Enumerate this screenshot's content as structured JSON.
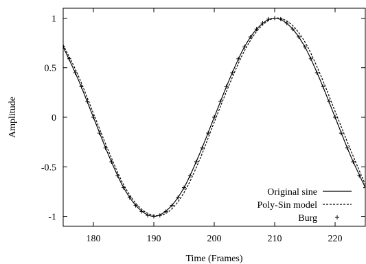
{
  "chart_data": {
    "type": "line",
    "title": "",
    "xlabel": "Time (Frames)",
    "ylabel": "Amplitude",
    "xlim": [
      175,
      225
    ],
    "ylim": [
      -1.1,
      1.1
    ],
    "x_ticks": [
      180,
      190,
      200,
      210,
      220
    ],
    "x_tick_labels": [
      "180",
      "190",
      "200",
      "210",
      "220"
    ],
    "y_ticks": [
      1,
      0.5,
      0,
      -0.5,
      -1
    ],
    "y_tick_labels": [
      "1",
      "0.5",
      "0",
      "-0.5",
      "-1"
    ],
    "grid": false,
    "legend_position": "bottom-right",
    "series": [
      {
        "name": "Original sine",
        "style": "solid",
        "color": "#000000",
        "x": [
          175,
          177.5,
          180,
          182.5,
          185,
          187.5,
          190,
          192.5,
          195,
          197.5,
          200,
          202.5,
          205,
          207.5,
          210,
          212.5,
          215,
          217.5,
          220,
          222.5,
          225
        ],
        "y": [
          0.71,
          0.38,
          0.0,
          -0.38,
          -0.71,
          -0.92,
          -1.0,
          -0.92,
          -0.71,
          -0.38,
          0.0,
          0.38,
          0.71,
          0.92,
          1.0,
          0.92,
          0.71,
          0.38,
          0.0,
          -0.38,
          -0.71
        ]
      },
      {
        "name": "Poly-Sin model",
        "style": "dashed",
        "color": "#000000",
        "x": [
          175,
          177.5,
          180,
          182.5,
          185,
          187.5,
          190,
          192.5,
          195,
          197.5,
          200,
          202.5,
          205,
          207.5,
          210,
          212.5,
          215,
          217.5,
          220,
          222.5,
          225
        ],
        "y": [
          0.73,
          0.42,
          0.04,
          -0.34,
          -0.68,
          -0.9,
          -0.99,
          -0.95,
          -0.76,
          -0.44,
          -0.05,
          0.33,
          0.67,
          0.9,
          1.0,
          0.95,
          0.76,
          0.44,
          0.06,
          -0.32,
          -0.68
        ]
      },
      {
        "name": "Burg",
        "style": "markers",
        "marker": "+",
        "color": "#000000",
        "x": [
          175,
          176,
          177,
          178,
          179,
          180,
          181,
          182,
          183,
          184,
          185,
          186,
          187,
          188,
          189,
          190,
          191,
          192,
          193,
          194,
          195,
          196,
          197,
          198,
          199,
          200,
          201,
          202,
          203,
          204,
          205,
          206,
          207,
          208,
          209,
          210,
          211,
          212,
          213,
          214,
          215,
          216,
          217,
          218,
          219,
          220,
          221,
          222,
          223,
          224,
          225
        ],
        "y": [
          0.71,
          0.59,
          0.45,
          0.31,
          0.16,
          0.0,
          -0.16,
          -0.31,
          -0.45,
          -0.59,
          -0.71,
          -0.81,
          -0.89,
          -0.95,
          -0.99,
          -1.0,
          -0.99,
          -0.95,
          -0.89,
          -0.81,
          -0.71,
          -0.59,
          -0.45,
          -0.31,
          -0.16,
          0.0,
          0.16,
          0.31,
          0.45,
          0.59,
          0.71,
          0.81,
          0.89,
          0.95,
          0.99,
          1.0,
          0.99,
          0.95,
          0.89,
          0.81,
          0.71,
          0.59,
          0.45,
          0.31,
          0.16,
          0.0,
          -0.16,
          -0.31,
          -0.45,
          -0.59,
          -0.71
        ]
      }
    ]
  }
}
